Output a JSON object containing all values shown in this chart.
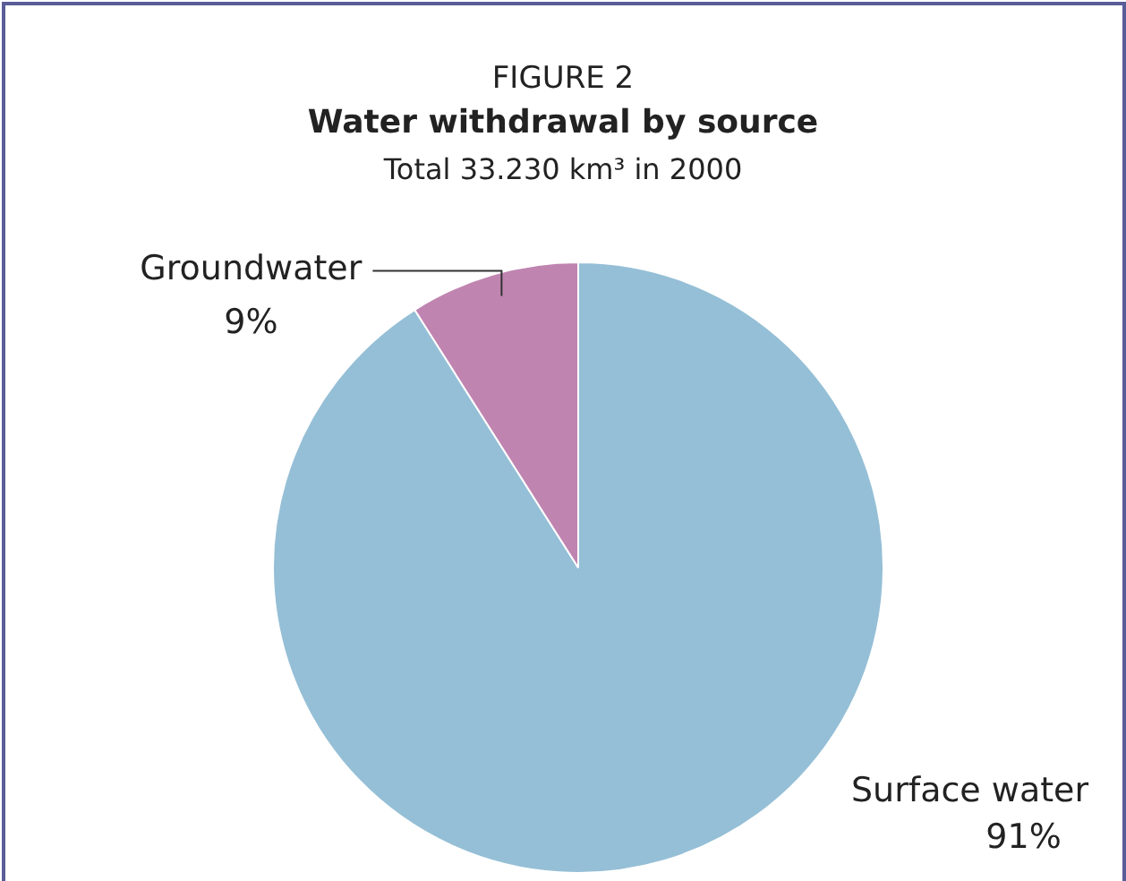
{
  "chart_data": {
    "type": "pie",
    "annotations": [
      "FIGURE 2"
    ],
    "title": "Water withdrawal by source",
    "subtitle": "Total 33.230 km³ in 2000",
    "categories": [
      "Surface water",
      "Groundwater"
    ],
    "values": [
      91,
      9
    ],
    "colors": [
      "#95bfd6",
      "#c084b0"
    ],
    "value_labels": [
      "91%",
      "9%"
    ],
    "legend": false
  }
}
